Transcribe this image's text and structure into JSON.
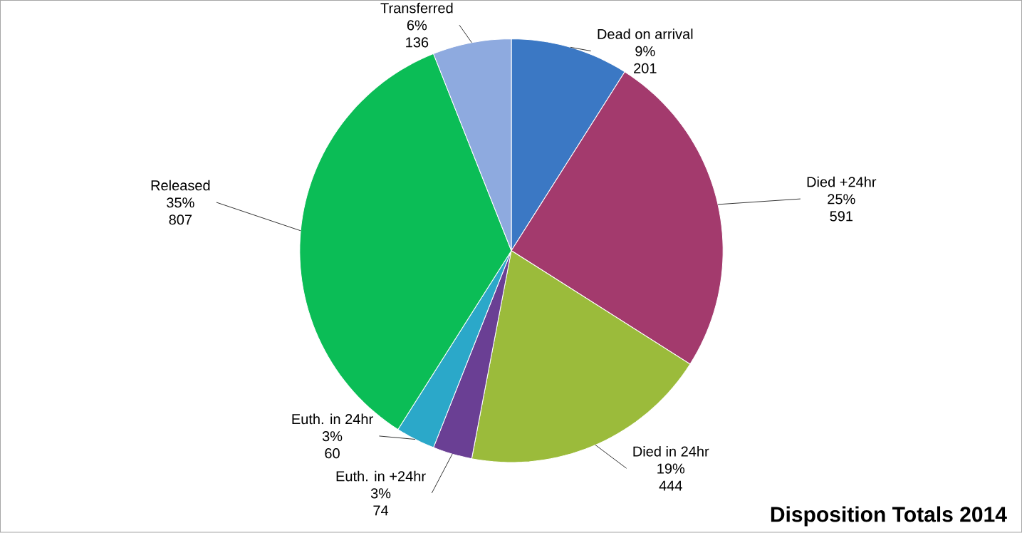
{
  "chart_data": {
    "type": "pie",
    "title": "Disposition Totals 2014",
    "categories": [
      "Dead on arrival",
      "Died +24hr",
      "Died in 24hr",
      "Euth. in  +24hr",
      "Euth. in  24hr",
      "Released",
      "Transferred"
    ],
    "values": [
      9,
      25,
      19,
      3,
      3,
      35,
      6
    ],
    "value_labels": [
      "9%",
      "25%",
      "19%",
      "3%",
      "3%",
      "35%",
      "6%"
    ],
    "annotations": [
      "201",
      "591",
      "444",
      "74",
      "60",
      "807",
      "136"
    ],
    "colors": [
      "#3b78c4",
      "#a33a6d",
      "#9bbb3b",
      "#6a3f94",
      "#2ba8c9",
      "#0bbd56",
      "#8eaadf"
    ]
  }
}
